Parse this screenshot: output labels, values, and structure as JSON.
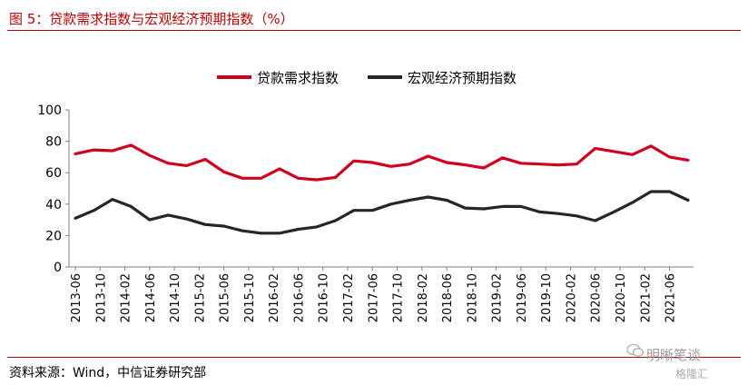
{
  "title": "图 5：贷款需求指数与宏观经济预期指数（%）",
  "source": "资料来源：Wind，中信证券研究部",
  "watermark": "明晰笔谈",
  "watermark_sub": "格隆汇",
  "colors": {
    "title": "#c00000",
    "series1": "#d00020",
    "series2": "#262626"
  },
  "chart_data": {
    "type": "line",
    "ylim": [
      0,
      100
    ],
    "yticks": [
      0,
      20,
      40,
      60,
      80,
      100
    ],
    "legend_position": "top",
    "grid": false,
    "x": [
      "2013-06",
      "2013-09",
      "2013-12",
      "2014-03",
      "2014-06",
      "2014-09",
      "2014-12",
      "2015-03",
      "2015-06",
      "2015-09",
      "2015-12",
      "2016-03",
      "2016-06",
      "2016-09",
      "2016-12",
      "2017-03",
      "2017-06",
      "2017-09",
      "2017-12",
      "2018-03",
      "2018-06",
      "2018-09",
      "2018-12",
      "2019-03",
      "2019-06",
      "2019-09",
      "2019-12",
      "2020-03",
      "2020-06",
      "2020-09",
      "2020-12",
      "2021-03",
      "2021-06",
      "2021-09"
    ],
    "xtick_labels": [
      "2013-06",
      "2013-10",
      "2014-02",
      "2014-06",
      "2014-10",
      "2015-02",
      "2015-06",
      "2015-10",
      "2016-02",
      "2016-06",
      "2016-10",
      "2017-02",
      "2017-06",
      "2017-10",
      "2018-02",
      "2018-06",
      "2018-10",
      "2019-02",
      "2019-06",
      "2019-10",
      "2020-02",
      "2020-06",
      "2020-10",
      "2021-02",
      "2021-06"
    ],
    "series": [
      {
        "name": "贷款需求指数",
        "values": [
          72,
          74.5,
          74,
          77.5,
          71,
          66,
          64.5,
          68.5,
          60.5,
          56.5,
          56.5,
          62.5,
          56.5,
          55.5,
          57,
          67.5,
          66.5,
          64,
          65.5,
          70.5,
          66.5,
          65,
          63,
          69.5,
          66,
          65.5,
          65,
          65.5,
          75.5,
          73.5,
          71.5,
          77,
          70,
          68
        ]
      },
      {
        "name": "宏观经济预期指数",
        "values": [
          31,
          36,
          43,
          38.5,
          30,
          33,
          30.5,
          27,
          26,
          23,
          21.5,
          21.5,
          24,
          25.5,
          29.5,
          36,
          36,
          40,
          42.5,
          44.5,
          42.5,
          37.5,
          37,
          38.5,
          38.5,
          35,
          34,
          32.5,
          29.5,
          35,
          41,
          48,
          48,
          42.5
        ]
      }
    ]
  }
}
